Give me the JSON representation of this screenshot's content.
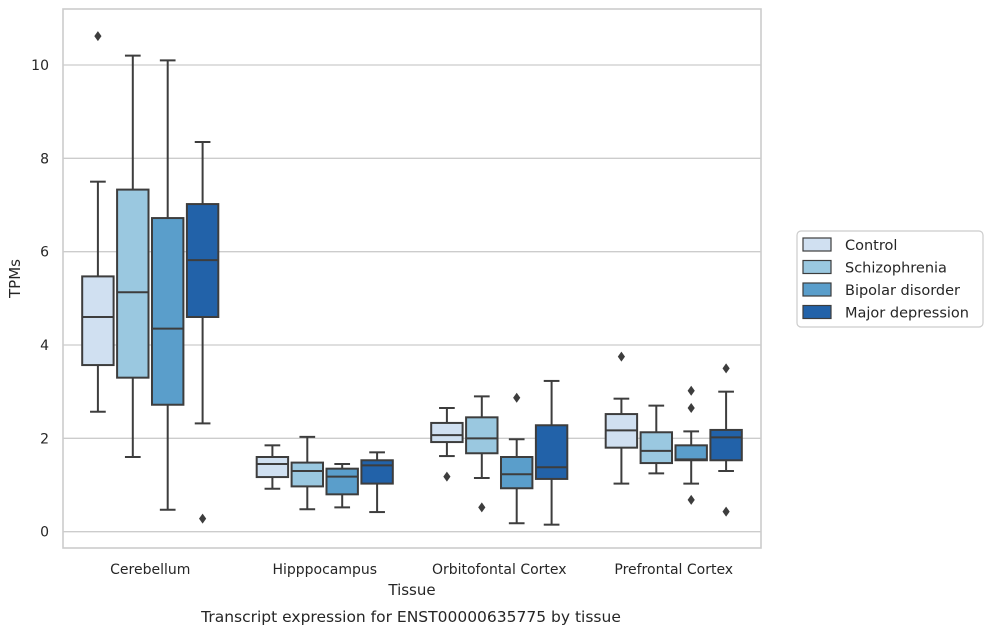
{
  "caption": "Transcript expression for ENST00000635775 by tissue",
  "chart_data": {
    "type": "boxplot",
    "xlabel": "Tissue",
    "ylabel": "TPMs",
    "ylim": [
      -0.35,
      11.2
    ],
    "yticks": [
      0,
      2,
      4,
      6,
      8,
      10
    ],
    "grid": "horizontal",
    "legend_placement": "right",
    "categories": [
      "Cerebellum",
      "Hipppocampus",
      "Orbitofontal Cortex",
      "Prefrontal Cortex"
    ],
    "series": [
      {
        "name": "Control",
        "color": "#d0e0f1",
        "boxes": [
          {
            "whisker_low": 2.57,
            "q1": 3.57,
            "median": 4.6,
            "q3": 5.47,
            "whisker_high": 7.5,
            "outliers": [
              10.62
            ]
          },
          {
            "whisker_low": 0.92,
            "q1": 1.17,
            "median": 1.45,
            "q3": 1.6,
            "whisker_high": 1.85,
            "outliers": []
          },
          {
            "whisker_low": 1.62,
            "q1": 1.92,
            "median": 2.07,
            "q3": 2.33,
            "whisker_high": 2.65,
            "outliers": [
              1.18
            ]
          },
          {
            "whisker_low": 1.03,
            "q1": 1.8,
            "median": 2.17,
            "q3": 2.52,
            "whisker_high": 2.85,
            "outliers": [
              3.75
            ]
          }
        ]
      },
      {
        "name": "Schizophrenia",
        "color": "#9ac8e0",
        "boxes": [
          {
            "whisker_low": 1.6,
            "q1": 3.3,
            "median": 5.13,
            "q3": 7.33,
            "whisker_high": 10.2,
            "outliers": []
          },
          {
            "whisker_low": 0.48,
            "q1": 0.97,
            "median": 1.3,
            "q3": 1.48,
            "whisker_high": 2.03,
            "outliers": []
          },
          {
            "whisker_low": 1.15,
            "q1": 1.68,
            "median": 2.0,
            "q3": 2.45,
            "whisker_high": 2.9,
            "outliers": [
              0.52
            ]
          },
          {
            "whisker_low": 1.25,
            "q1": 1.47,
            "median": 1.73,
            "q3": 2.13,
            "whisker_high": 2.7,
            "outliers": []
          }
        ]
      },
      {
        "name": "Bipolar disorder",
        "color": "#5a9ecb",
        "boxes": [
          {
            "whisker_low": 0.47,
            "q1": 2.72,
            "median": 4.35,
            "q3": 6.72,
            "whisker_high": 10.1,
            "outliers": []
          },
          {
            "whisker_low": 0.52,
            "q1": 0.8,
            "median": 1.18,
            "q3": 1.35,
            "whisker_high": 1.45,
            "outliers": []
          },
          {
            "whisker_low": 0.18,
            "q1": 0.93,
            "median": 1.23,
            "q3": 1.6,
            "whisker_high": 1.98,
            "outliers": [
              2.87
            ]
          },
          {
            "whisker_low": 1.03,
            "q1": 1.53,
            "median": 1.55,
            "q3": 1.85,
            "whisker_high": 2.15,
            "outliers": [
              3.02,
              2.65,
              0.68
            ]
          }
        ]
      },
      {
        "name": "Major depression",
        "color": "#2262a9",
        "boxes": [
          {
            "whisker_low": 2.32,
            "q1": 4.6,
            "median": 5.82,
            "q3": 7.02,
            "whisker_high": 8.35,
            "outliers": [
              0.28
            ]
          },
          {
            "whisker_low": 0.42,
            "q1": 1.03,
            "median": 1.42,
            "q3": 1.53,
            "whisker_high": 1.7,
            "outliers": []
          },
          {
            "whisker_low": 0.15,
            "q1": 1.13,
            "median": 1.38,
            "q3": 2.28,
            "whisker_high": 3.23,
            "outliers": []
          },
          {
            "whisker_low": 1.3,
            "q1": 1.53,
            "median": 2.02,
            "q3": 2.18,
            "whisker_high": 3.0,
            "outliers": [
              3.5,
              0.43
            ]
          }
        ]
      }
    ]
  }
}
